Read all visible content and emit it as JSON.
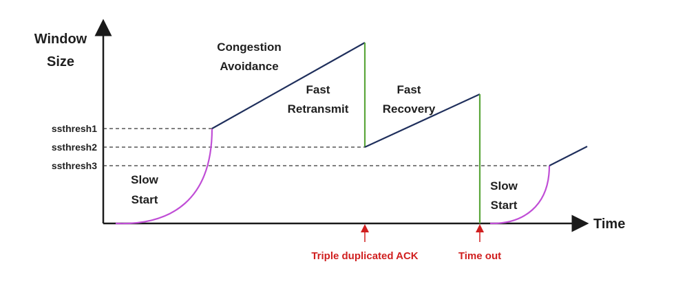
{
  "axes": {
    "y_title_line1": "Window",
    "y_title_line2": "Size",
    "x_title": "Time"
  },
  "thresholds": [
    "ssthresh1",
    "ssthresh2",
    "ssthresh3"
  ],
  "phases": {
    "slow_start_1": [
      "Slow",
      "Start"
    ],
    "congestion_avoidance": [
      "Congestion",
      "Avoidance"
    ],
    "fast_retransmit": [
      "Fast",
      "Retransmit"
    ],
    "fast_recovery": [
      "Fast",
      "Recovery"
    ],
    "slow_start_2": [
      "Slow",
      "Start"
    ]
  },
  "events": {
    "triple_dup_ack": "Triple duplicated ACK",
    "time_out": "Time out"
  },
  "colors": {
    "axis": "#1a1a1a",
    "growth_line": "#1f2f5c",
    "slow_start_curve": "#c04ed6",
    "drop_line": "#5aa63a",
    "dashed": "#333333",
    "event_marker": "#d01f1f"
  }
}
